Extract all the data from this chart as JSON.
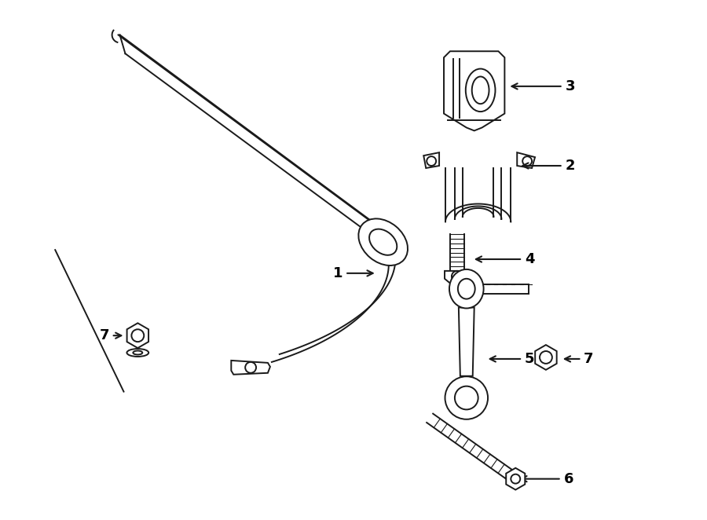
{
  "background_color": "#ffffff",
  "line_color": "#1a1a1a",
  "lw": 1.4,
  "text_color": "#000000",
  "font_size": 13
}
